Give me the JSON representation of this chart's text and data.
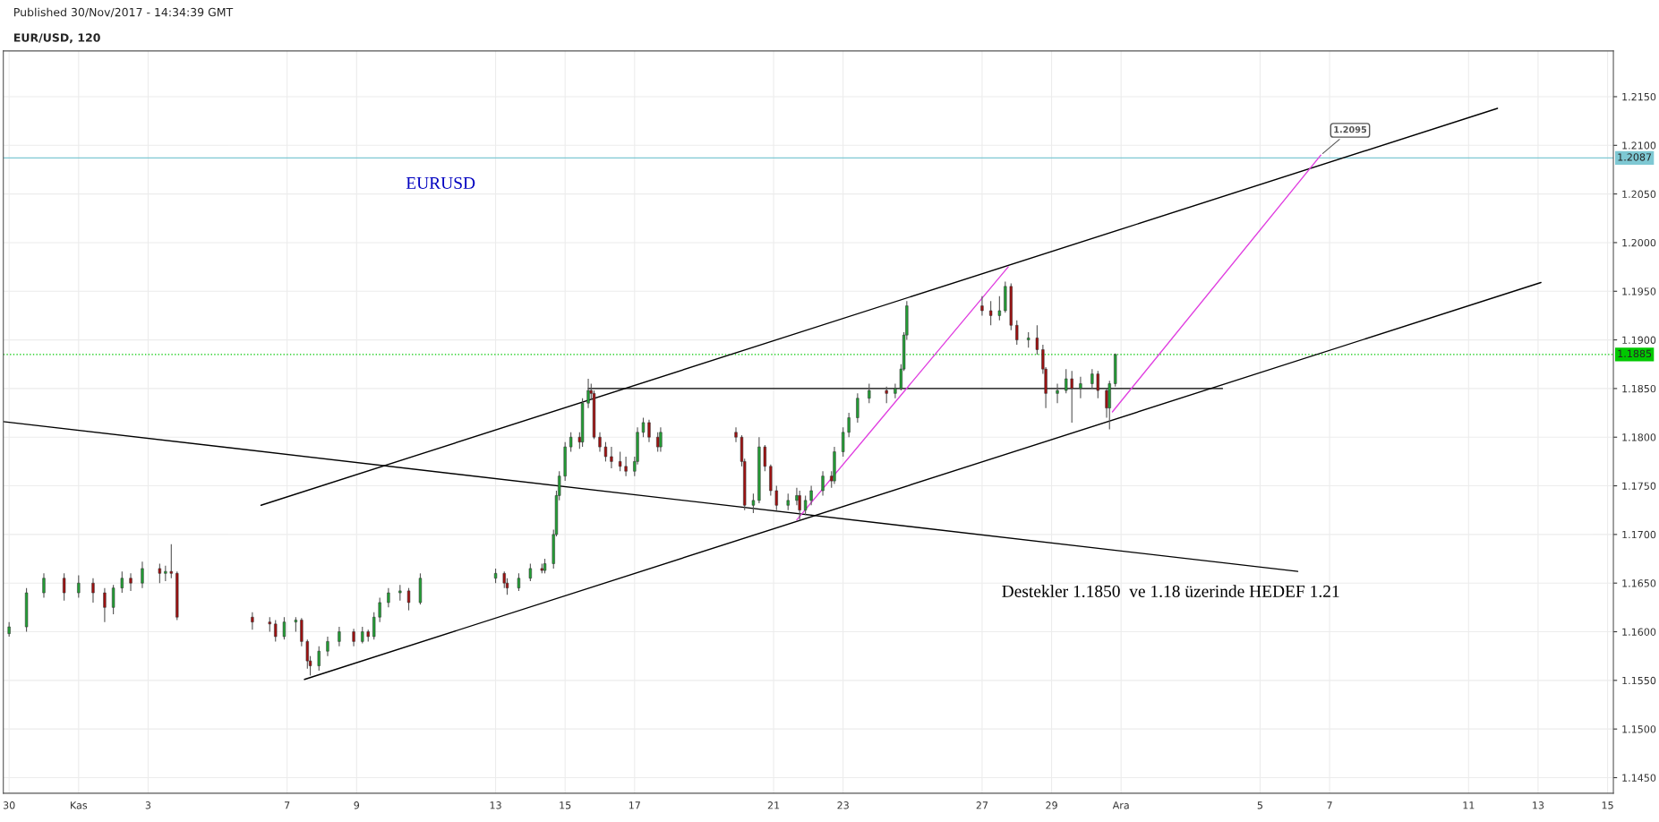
{
  "chart_data": {
    "type": "candlestick",
    "title": "EUR/USD, 120",
    "subtitle": "Published 30/Nov/2017 - 14:34:39 GMT",
    "x": [
      "2017-10-30T00:00",
      "2017-10-30T12:00",
      "2017-10-31T00:00",
      "2017-10-31T14:00",
      "2017-11-01T00:00",
      "2017-11-01T10:00",
      "2017-11-01T18:00",
      "2017-11-02T00:00",
      "2017-11-02T06:00",
      "2017-11-02T12:00",
      "2017-11-02T20:00",
      "2017-11-03T08:00",
      "2017-11-03T12:00",
      "2017-11-03T16:00",
      "2017-11-03T20:00",
      "2017-11-06T00:00",
      "2017-11-06T12:00",
      "2017-11-06T16:00",
      "2017-11-06T22:00",
      "2017-11-07T06:00",
      "2017-11-07T10:00",
      "2017-11-07T14:00",
      "2017-11-07T16:00",
      "2017-11-07T22:00",
      "2017-11-08T04:00",
      "2017-11-08T12:00",
      "2017-11-08T22:00",
      "2017-11-09T04:00",
      "2017-11-09T08:00",
      "2017-11-09T12:00",
      "2017-11-09T16:00",
      "2017-11-09T22:00",
      "2017-11-10T06:00",
      "2017-11-10T12:00",
      "2017-11-10T20:00",
      "2017-11-13T00:00",
      "2017-11-13T06:00",
      "2017-11-13T08:00",
      "2017-11-13T16:00",
      "2017-11-14T00:00",
      "2017-11-14T08:00",
      "2017-11-14T10:00",
      "2017-11-14T16:00",
      "2017-11-14T18:00",
      "2017-11-14T20:00",
      "2017-11-15T00:00",
      "2017-11-15T04:00",
      "2017-11-15T10:00",
      "2017-11-15T12:00",
      "2017-11-15T16:00",
      "2017-11-15T18:00",
      "2017-11-15T20:00",
      "2017-11-16T00:00",
      "2017-11-16T04:00",
      "2017-11-16T08:00",
      "2017-11-16T14:00",
      "2017-11-16T18:00",
      "2017-11-17T00:00",
      "2017-11-17T02:00",
      "2017-11-17T06:00",
      "2017-11-17T10:00",
      "2017-11-17T16:00",
      "2017-11-17T18:00",
      "2017-11-19T22:00",
      "2017-11-20T02:00",
      "2017-11-20T04:00",
      "2017-11-20T10:00",
      "2017-11-20T14:00",
      "2017-11-20T18:00",
      "2017-11-20T22:00",
      "2017-11-21T02:00",
      "2017-11-21T10:00",
      "2017-11-21T16:00",
      "2017-11-21T18:00",
      "2017-11-21T22:00",
      "2017-11-22T02:00",
      "2017-11-22T10:00",
      "2017-11-22T16:00",
      "2017-11-22T18:00",
      "2017-11-23T00:00",
      "2017-11-23T04:00",
      "2017-11-23T10:00",
      "2017-11-23T18:00",
      "2017-11-24T06:00",
      "2017-11-24T12:00",
      "2017-11-24T16:00",
      "2017-11-24T18:00",
      "2017-11-24T20:00",
      "2017-11-27T00:00",
      "2017-11-27T06:00",
      "2017-11-27T12:00",
      "2017-11-27T16:00",
      "2017-11-27T20:00",
      "2017-11-28T00:00",
      "2017-11-28T08:00",
      "2017-11-28T14:00",
      "2017-11-28T18:00",
      "2017-11-28T20:00",
      "2017-11-29T04:00",
      "2017-11-29T10:00",
      "2017-11-29T14:00",
      "2017-11-29T20:00",
      "2017-11-30T04:00",
      "2017-11-30T08:00",
      "2017-11-30T14:00",
      "2017-11-30T16:00",
      "2017-11-30T20:00"
    ],
    "ohlc": [
      [
        1.1598,
        1.161,
        1.1595,
        1.1605
      ],
      [
        1.1605,
        1.1645,
        1.16,
        1.164
      ],
      [
        1.164,
        1.166,
        1.1635,
        1.1655
      ],
      [
        1.1655,
        1.166,
        1.1632,
        1.164
      ],
      [
        1.164,
        1.1658,
        1.1635,
        1.165
      ],
      [
        1.165,
        1.1655,
        1.163,
        1.164
      ],
      [
        1.164,
        1.1645,
        1.161,
        1.1625
      ],
      [
        1.1625,
        1.1648,
        1.1618,
        1.1645
      ],
      [
        1.1645,
        1.1662,
        1.164,
        1.1655
      ],
      [
        1.1655,
        1.166,
        1.1642,
        1.165
      ],
      [
        1.165,
        1.1672,
        1.1645,
        1.1665
      ],
      [
        1.1665,
        1.167,
        1.165,
        1.166
      ],
      [
        1.166,
        1.1668,
        1.1652,
        1.1662
      ],
      [
        1.1662,
        1.169,
        1.1655,
        1.166
      ],
      [
        1.166,
        1.1662,
        1.1612,
        1.1615
      ],
      [
        1.1615,
        1.162,
        1.1602,
        1.161
      ],
      [
        1.161,
        1.1615,
        1.16,
        1.1608
      ],
      [
        1.1608,
        1.1612,
        1.159,
        1.1595
      ],
      [
        1.1595,
        1.1615,
        1.1592,
        1.161
      ],
      [
        1.161,
        1.1615,
        1.16,
        1.1612
      ],
      [
        1.1612,
        1.1614,
        1.1585,
        1.159
      ],
      [
        1.159,
        1.1592,
        1.1562,
        1.157
      ],
      [
        1.157,
        1.1575,
        1.1555,
        1.1565
      ],
      [
        1.1565,
        1.1585,
        1.156,
        1.158
      ],
      [
        1.158,
        1.1595,
        1.1575,
        1.159
      ],
      [
        1.159,
        1.1605,
        1.1585,
        1.16
      ],
      [
        1.16,
        1.1603,
        1.1585,
        1.159
      ],
      [
        1.159,
        1.1605,
        1.1588,
        1.16
      ],
      [
        1.16,
        1.1602,
        1.159,
        1.1595
      ],
      [
        1.1595,
        1.162,
        1.1592,
        1.1615
      ],
      [
        1.1615,
        1.1635,
        1.161,
        1.163
      ],
      [
        1.163,
        1.1645,
        1.1625,
        1.164
      ],
      [
        1.164,
        1.1648,
        1.1632,
        1.1642
      ],
      [
        1.1642,
        1.1645,
        1.1622,
        1.163
      ],
      [
        1.163,
        1.166,
        1.1628,
        1.1655
      ],
      [
        1.1655,
        1.1665,
        1.165,
        1.166
      ],
      [
        1.166,
        1.1662,
        1.1645,
        1.165
      ],
      [
        1.165,
        1.1655,
        1.1638,
        1.1645
      ],
      [
        1.1645,
        1.166,
        1.1642,
        1.1655
      ],
      [
        1.1655,
        1.167,
        1.1652,
        1.1665
      ],
      [
        1.1665,
        1.167,
        1.166,
        1.1663
      ],
      [
        1.1663,
        1.1675,
        1.166,
        1.167
      ],
      [
        1.167,
        1.1705,
        1.1665,
        1.17
      ],
      [
        1.17,
        1.1745,
        1.1698,
        1.174
      ],
      [
        1.174,
        1.1765,
        1.1735,
        1.176
      ],
      [
        1.176,
        1.1795,
        1.1755,
        1.179
      ],
      [
        1.179,
        1.1805,
        1.1785,
        1.18
      ],
      [
        1.18,
        1.1805,
        1.1788,
        1.1795
      ],
      [
        1.1795,
        1.184,
        1.179,
        1.1835
      ],
      [
        1.1835,
        1.186,
        1.183,
        1.1848
      ],
      [
        1.1848,
        1.1855,
        1.1838,
        1.1845
      ],
      [
        1.1845,
        1.1848,
        1.1798,
        1.18
      ],
      [
        1.18,
        1.1805,
        1.1785,
        1.179
      ],
      [
        1.179,
        1.1795,
        1.1775,
        1.178
      ],
      [
        1.178,
        1.179,
        1.1768,
        1.1775
      ],
      [
        1.1775,
        1.1785,
        1.1765,
        1.177
      ],
      [
        1.177,
        1.178,
        1.176,
        1.1765
      ],
      [
        1.1765,
        1.178,
        1.176,
        1.1775
      ],
      [
        1.1775,
        1.181,
        1.1772,
        1.1805
      ],
      [
        1.1805,
        1.182,
        1.18,
        1.1815
      ],
      [
        1.1815,
        1.1818,
        1.1795,
        1.18
      ],
      [
        1.18,
        1.1805,
        1.1785,
        1.179
      ],
      [
        1.179,
        1.181,
        1.1785,
        1.1805
      ],
      [
        1.1805,
        1.181,
        1.1795,
        1.18
      ],
      [
        1.18,
        1.1802,
        1.177,
        1.1775
      ],
      [
        1.1775,
        1.1778,
        1.1725,
        1.173
      ],
      [
        1.173,
        1.1742,
        1.1722,
        1.1735
      ],
      [
        1.1735,
        1.18,
        1.1732,
        1.179
      ],
      [
        1.179,
        1.1792,
        1.1765,
        1.177
      ],
      [
        1.177,
        1.1772,
        1.174,
        1.1745
      ],
      [
        1.1745,
        1.175,
        1.1725,
        1.173
      ],
      [
        1.173,
        1.1742,
        1.1725,
        1.1735
      ],
      [
        1.1735,
        1.1748,
        1.173,
        1.174
      ],
      [
        1.174,
        1.1745,
        1.1715,
        1.1725
      ],
      [
        1.1725,
        1.174,
        1.172,
        1.1735
      ],
      [
        1.1735,
        1.175,
        1.173,
        1.1745
      ],
      [
        1.1745,
        1.1765,
        1.174,
        1.176
      ],
      [
        1.176,
        1.1765,
        1.1748,
        1.1755
      ],
      [
        1.1755,
        1.179,
        1.1752,
        1.1785
      ],
      [
        1.1785,
        1.181,
        1.178,
        1.1805
      ],
      [
        1.1805,
        1.1825,
        1.18,
        1.182
      ],
      [
        1.182,
        1.1845,
        1.1815,
        1.184
      ],
      [
        1.184,
        1.1855,
        1.1835,
        1.1848
      ],
      [
        1.1848,
        1.1852,
        1.1835,
        1.1845
      ],
      [
        1.1845,
        1.1855,
        1.184,
        1.185
      ],
      [
        1.185,
        1.1875,
        1.1848,
        1.187
      ],
      [
        1.187,
        1.1908,
        1.1868,
        1.1905
      ],
      [
        1.1905,
        1.194,
        1.19,
        1.1935
      ],
      [
        1.1935,
        1.1945,
        1.1925,
        1.193
      ],
      [
        1.193,
        1.194,
        1.1915,
        1.1925
      ],
      [
        1.1925,
        1.1945,
        1.192,
        1.193
      ],
      [
        1.193,
        1.196,
        1.1928,
        1.1955
      ],
      [
        1.1955,
        1.1958,
        1.191,
        1.1915
      ],
      [
        1.1915,
        1.192,
        1.1895,
        1.19
      ],
      [
        1.19,
        1.1908,
        1.1892,
        1.1902
      ],
      [
        1.1902,
        1.1915,
        1.1885,
        1.189
      ],
      [
        1.189,
        1.1895,
        1.1865,
        1.187
      ],
      [
        1.187,
        1.1872,
        1.183,
        1.1845
      ],
      [
        1.1845,
        1.1855,
        1.1835,
        1.1848
      ],
      [
        1.1848,
        1.187,
        1.1845,
        1.186
      ],
      [
        1.186,
        1.1868,
        1.1815,
        1.185
      ],
      [
        1.185,
        1.1862,
        1.184,
        1.1855
      ],
      [
        1.1855,
        1.187,
        1.185,
        1.1865
      ],
      [
        1.1865,
        1.1868,
        1.184,
        1.1848
      ],
      [
        1.1848,
        1.185,
        1.182,
        1.183
      ],
      [
        1.183,
        1.1858,
        1.1808,
        1.1855
      ],
      [
        1.1855,
        1.1886,
        1.1852,
        1.1885
      ]
    ],
    "series": [
      {
        "type": "line",
        "color": "#000000",
        "x": [
          "2017-11-06T06:00",
          "2017-12-11T20:00"
        ],
        "values": [
          1.173,
          1.2138
        ]
      },
      {
        "type": "line",
        "color": "#000000",
        "x": [
          "2017-11-07T12:00",
          "2017-12-13T02:00"
        ],
        "values": [
          1.1551,
          1.1959
        ]
      },
      {
        "type": "line",
        "color": "#000000",
        "x": [
          "2017-10-29T20:00",
          "2017-12-06T02:00"
        ],
        "values": [
          1.1816,
          1.1662
        ]
      },
      {
        "type": "line",
        "color": "#000000",
        "x": [
          "2017-11-15T16:00",
          "2017-12-03T22:00"
        ],
        "values": [
          1.185,
          1.185
        ]
      },
      {
        "type": "line",
        "color": "#e040e0",
        "x": [
          "2017-11-21T16:00",
          "2017-11-27T18:00"
        ],
        "values": [
          1.1715,
          1.1975
        ]
      },
      {
        "type": "line",
        "color": "#e040e0",
        "x": [
          "2017-11-30T18:00",
          "2017-12-06T18:00"
        ],
        "values": [
          1.1826,
          1.209
        ]
      }
    ],
    "ref_lines": [
      {
        "axis": "y",
        "value": 1.1885,
        "label": "1.1885",
        "color": "#00c800",
        "line_style": "dotted"
      },
      {
        "axis": "y",
        "value": 1.2087,
        "label": "1.2087",
        "color": "#7ec8d3",
        "line_style": "solid"
      }
    ],
    "annotations": [
      "EURUSD",
      "Destekler 1.1850  ve 1.18 üzerinde HEDEF 1.21",
      {
        "text": "1.2095",
        "x": "2017-12-06T18:00",
        "y": 1.209
      }
    ],
    "xlim": [
      "2017-10-29T20:00",
      "2017-12-15T04:00"
    ],
    "ylim": [
      1.1434,
      1.2197
    ],
    "xticks": [
      {
        "value": "2017-10-30",
        "label": "30"
      },
      {
        "value": "2017-11-01",
        "label": "Kas"
      },
      {
        "value": "2017-11-03",
        "label": "3"
      },
      {
        "value": "2017-11-07",
        "label": "7"
      },
      {
        "value": "2017-11-09",
        "label": "9"
      },
      {
        "value": "2017-11-13",
        "label": "13"
      },
      {
        "value": "2017-11-15",
        "label": "15"
      },
      {
        "value": "2017-11-17",
        "label": "17"
      },
      {
        "value": "2017-11-21",
        "label": "21"
      },
      {
        "value": "2017-11-23",
        "label": "23"
      },
      {
        "value": "2017-11-27",
        "label": "27"
      },
      {
        "value": "2017-11-29",
        "label": "29"
      },
      {
        "value": "2017-12-01",
        "label": "Ara"
      },
      {
        "value": "2017-12-05",
        "label": "5"
      },
      {
        "value": "2017-12-07",
        "label": "7"
      },
      {
        "value": "2017-12-11",
        "label": "11"
      },
      {
        "value": "2017-12-13",
        "label": "13"
      },
      {
        "value": "2017-12-15",
        "label": "15"
      }
    ],
    "yticks": [
      {
        "value": 1.145,
        "label": "1.1450"
      },
      {
        "value": 1.15,
        "label": "1.1500"
      },
      {
        "value": 1.155,
        "label": "1.1550"
      },
      {
        "value": 1.16,
        "label": "1.1600"
      },
      {
        "value": 1.165,
        "label": "1.1650"
      },
      {
        "value": 1.17,
        "label": "1.1700"
      },
      {
        "value": 1.175,
        "label": "1.1750"
      },
      {
        "value": 1.18,
        "label": "1.1800"
      },
      {
        "value": 1.185,
        "label": "1.1850"
      },
      {
        "value": 1.19,
        "label": "1.1900"
      },
      {
        "value": 1.195,
        "label": "1.1950"
      },
      {
        "value": 1.2,
        "label": "1.2000"
      },
      {
        "value": 1.205,
        "label": "1.2050"
      },
      {
        "value": 1.21,
        "label": "1.2100"
      },
      {
        "value": 1.215,
        "label": "1.2150"
      }
    ],
    "grid": true
  }
}
